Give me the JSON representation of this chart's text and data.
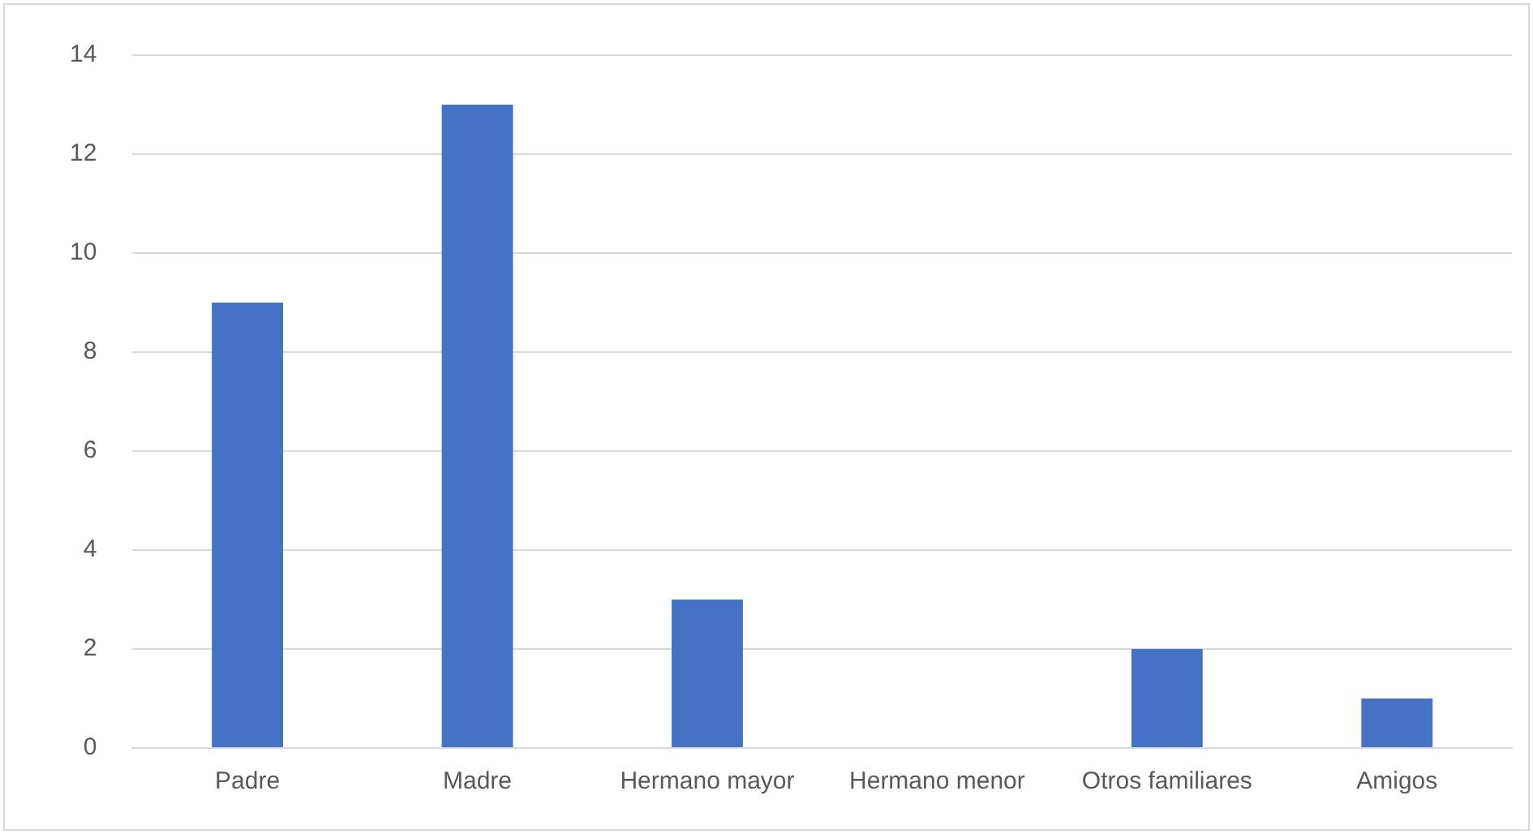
{
  "chart_data": {
    "type": "bar",
    "categories": [
      "Padre",
      "Madre",
      "Hermano mayor",
      "Hermano menor",
      "Otros familiares",
      "Amigos"
    ],
    "values": [
      9,
      13,
      3,
      0,
      2,
      1
    ],
    "color": "#4472c4",
    "ylim": [
      0,
      14
    ],
    "yticks": [
      0,
      2,
      4,
      6,
      8,
      10,
      12,
      14
    ],
    "grid": "y"
  }
}
